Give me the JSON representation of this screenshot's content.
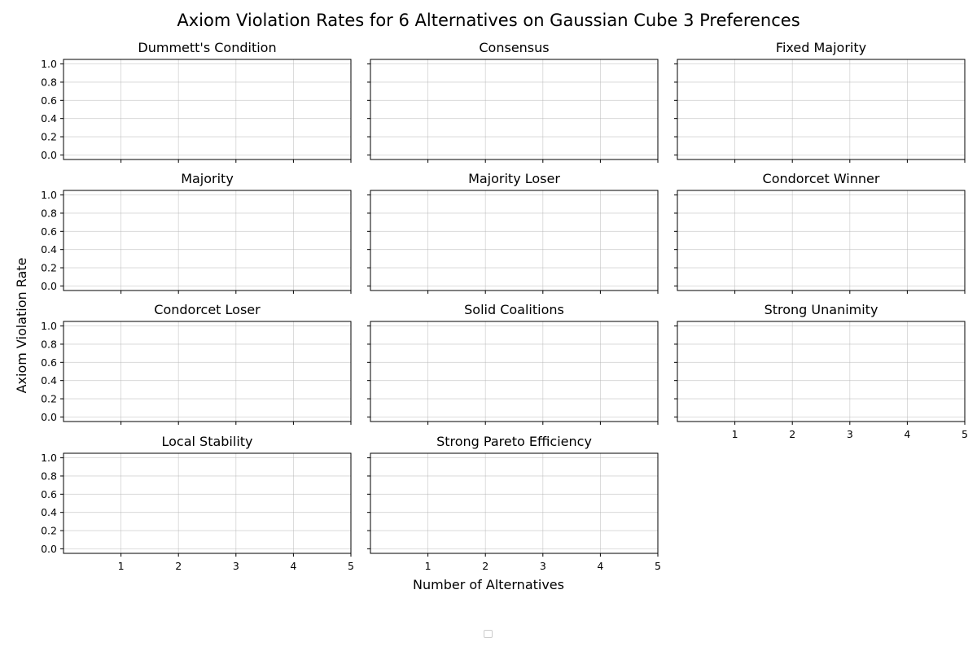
{
  "chart_data": {
    "type": "line",
    "title": "Axiom Violation Rates for 6 Alternatives on Gaussian Cube 3 Preferences",
    "xlabel": "Number of Alternatives",
    "ylabel": "Axiom Violation Rate",
    "xlim": [
      0,
      5
    ],
    "ylim": [
      -0.05,
      1.05
    ],
    "x_ticks": [
      "1",
      "2",
      "3",
      "4",
      "5"
    ],
    "y_ticks": [
      "0.0",
      "0.2",
      "0.4",
      "0.6",
      "0.8",
      "1.0"
    ],
    "grid": true,
    "legend": {
      "placement": "bottom-center",
      "entries": []
    },
    "panels": [
      {
        "title": "Dummett's Condition",
        "series": []
      },
      {
        "title": "Consensus",
        "series": []
      },
      {
        "title": "Fixed Majority",
        "series": []
      },
      {
        "title": "Majority",
        "series": []
      },
      {
        "title": "Majority Loser",
        "series": []
      },
      {
        "title": "Condorcet Winner",
        "series": []
      },
      {
        "title": "Condorcet Loser",
        "series": []
      },
      {
        "title": "Solid Coalitions",
        "series": []
      },
      {
        "title": "Strong Unanimity",
        "series": []
      },
      {
        "title": "Local Stability",
        "series": []
      },
      {
        "title": "Strong Pareto Efficiency",
        "series": []
      }
    ]
  }
}
